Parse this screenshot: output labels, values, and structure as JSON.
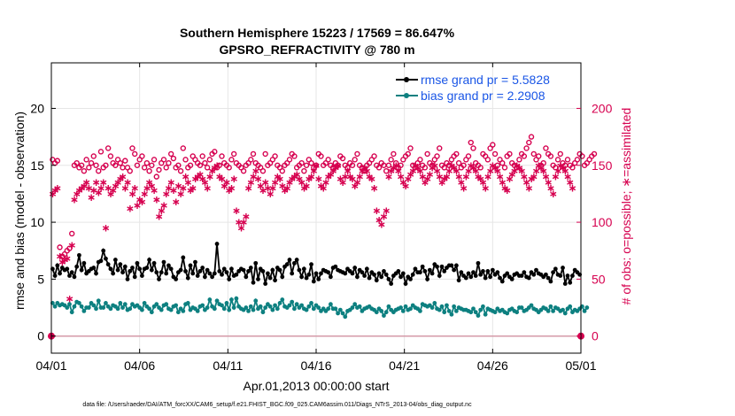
{
  "chart_data": {
    "type": "line",
    "title_line1": "Southern Hemisphere 15223 / 17569 = 86.647%",
    "title_line2": "GPSRO_REFRACTIVITY @ 780 m",
    "xlabel": "Apr.01,2013 00:00:00 start",
    "ylabel_left": "rmse and bias (model - observation)",
    "ylabel_right": "# of obs: o=possible; ∗=assimilated",
    "footer": "data file: /Users/raeder/DAI/ATM_forcXX/CAM6_setup/f.e21.FHIST_BGC.f09_025.CAM6assim.011/Diags_NTrS_2013-04/obs_diag_output.nc",
    "x_ticks": [
      "04/01",
      "04/06",
      "04/11",
      "04/16",
      "04/21",
      "04/26",
      "05/01"
    ],
    "x_tick_days": [
      0,
      5,
      10,
      15,
      20,
      25,
      30
    ],
    "xlim_days": [
      0,
      30
    ],
    "y_left_ticks": [
      "0",
      "5",
      "10",
      "15",
      "20"
    ],
    "y_left_tick_values": [
      0,
      5,
      10,
      15,
      20
    ],
    "ylim_left": [
      -1.5,
      24
    ],
    "y_right_ticks": [
      "0",
      "50",
      "100",
      "150",
      "200"
    ],
    "y_right_tick_values": [
      0,
      50,
      100,
      150,
      200
    ],
    "ylim_right": [
      -15,
      240
    ],
    "grid": true,
    "legend_position": "top-right",
    "colors": {
      "rmse": "#000000",
      "bias": "#0d8080",
      "obs": "#d6004f",
      "zero_line": "#d49aa8",
      "legend_text": "#1a56e6"
    },
    "series": [
      {
        "name": "rmse grand pr = 5.5828",
        "axis": "left",
        "values": [
          5.9,
          5.3,
          6.2,
          5.5,
          6.0,
          5.8,
          5.9,
          5.3,
          5.6,
          5.2,
          6.1,
          7.1,
          5.8,
          6.4,
          5.5,
          5.7,
          5.9,
          6.0,
          5.5,
          6.5,
          6.6,
          7.5,
          6.8,
          6.3,
          5.9,
          5.5,
          6.7,
          5.8,
          6.3,
          5.6,
          6.1,
          5.0,
          5.7,
          6.0,
          5.2,
          6.4,
          5.9,
          5.3,
          5.9,
          6.0,
          6.7,
          5.8,
          6.4,
          5.6,
          5.0,
          5.6,
          6.5,
          5.5,
          6.2,
          5.9,
          5.2,
          5.0,
          5.6,
          5.8,
          6.9,
          5.7,
          5.1,
          6.2,
          5.5,
          6.5,
          5.3,
          5.7,
          6.0,
          5.2,
          5.8,
          5.5,
          5.2,
          5.5,
          8.1,
          5.7,
          5.4,
          5.9,
          5.6,
          5.0,
          5.9,
          5.3,
          5.4,
          5.7,
          5.9,
          5.8,
          5.2,
          5.7,
          6.0,
          4.7,
          6.4,
          5.0,
          5.9,
          5.7,
          4.6,
          5.5,
          5.1,
          5.8,
          4.9,
          6.0,
          5.8,
          5.2,
          6.1,
          6.3,
          6.7,
          5.5,
          6.4,
          6.7,
          5.8,
          5.2,
          5.9,
          5.1,
          5.4,
          6.3,
          4.8,
          5.5,
          5.0,
          5.5,
          5.8,
          5.7,
          5.6,
          5.2,
          6.0,
          6.1,
          5.8,
          5.7,
          5.6,
          5.5,
          5.9,
          5.7,
          5.5,
          6.0,
          5.2,
          5.8,
          5.6,
          5.3,
          5.9,
          5.1,
          5.6,
          5.4,
          4.9,
          5.5,
          5.2,
          5.7,
          5.4,
          5.0,
          4.6,
          5.3,
          5.5,
          5.7,
          5.2,
          5.5,
          4.6,
          5.2,
          5.0,
          5.4,
          5.9,
          5.6,
          5.6,
          6.1,
          5.7,
          5.0,
          5.8,
          5.5,
          6.3,
          6.1,
          5.3,
          6.1,
          5.7,
          6.0,
          6.2,
          6.2,
          5.8,
          6.2,
          4.9,
          5.6,
          5.3,
          5.1,
          5.5,
          5.2,
          5.6,
          5.3,
          6.4,
          5.4,
          5.7,
          5.1,
          5.7,
          5.2,
          5.8,
          5.4,
          5.6,
          5.1,
          4.8,
          5.3,
          5.5,
          5.2,
          5.0,
          5.4,
          5.5,
          5.3,
          5.3,
          5.6,
          5.2,
          5.1,
          5.6,
          5.4,
          5.8,
          5.5,
          5.4,
          5.2,
          5.4,
          5.1,
          4.8,
          5.6,
          5.9,
          5.4,
          5.3,
          6.0,
          4.6,
          5.3,
          4.7,
          5.3,
          5.8,
          5.6,
          5.4
        ]
      },
      {
        "name": "bias grand pr = 2.2908",
        "axis": "left",
        "values": [
          2.9,
          2.6,
          2.9,
          2.7,
          2.8,
          2.7,
          2.5,
          2.8,
          2.1,
          2.6,
          3.0,
          2.9,
          2.6,
          2.2,
          2.5,
          2.5,
          2.9,
          2.7,
          2.4,
          3.1,
          2.5,
          2.5,
          2.9,
          2.6,
          2.4,
          2.7,
          2.6,
          2.4,
          2.9,
          2.5,
          2.8,
          2.3,
          2.4,
          2.8,
          2.6,
          2.7,
          2.5,
          2.3,
          2.9,
          2.6,
          2.4,
          2.1,
          2.6,
          2.8,
          2.5,
          2.3,
          2.7,
          2.8,
          2.4,
          2.3,
          2.6,
          2.7,
          2.1,
          2.4,
          2.2,
          2.8,
          2.9,
          2.3,
          2.5,
          2.4,
          2.2,
          2.6,
          2.7,
          2.3,
          2.5,
          3.2,
          2.6,
          2.4,
          3.1,
          2.8,
          2.7,
          2.4,
          2.9,
          2.3,
          3.2,
          2.5,
          3.3,
          2.6,
          2.4,
          2.3,
          2.5,
          2.2,
          2.6,
          2.3,
          3.1,
          2.4,
          2.6,
          2.1,
          2.5,
          2.8,
          2.6,
          2.3,
          2.7,
          2.4,
          2.9,
          3.2,
          2.6,
          2.5,
          2.7,
          3.0,
          2.4,
          2.8,
          2.5,
          2.7,
          2.4,
          2.3,
          2.6,
          2.9,
          2.4,
          2.7,
          2.5,
          2.2,
          2.4,
          2.2,
          2.4,
          2.8,
          2.4,
          2.4,
          2.0,
          2.3,
          2.0,
          1.7,
          2.2,
          2.3,
          2.5,
          2.8,
          2.5,
          2.6,
          2.2,
          2.4,
          2.5,
          2.6,
          2.4,
          2.3,
          2.1,
          2.4,
          2.2,
          1.8,
          2.1,
          2.6,
          2.3,
          2.1,
          2.3,
          2.4,
          2.5,
          2.2,
          2.6,
          2.3,
          2.4,
          2.7,
          2.5,
          2.4,
          2.2,
          2.8,
          2.7,
          2.6,
          2.7,
          2.5,
          2.9,
          2.4,
          2.3,
          2.6,
          2.1,
          2.7,
          2.2,
          1.9,
          2.6,
          2.2,
          2.5,
          2.4,
          2.3,
          2.3,
          2.2,
          2.1,
          2.4,
          2.1,
          1.8,
          2.3,
          2.6,
          1.9,
          2.4,
          2.3,
          2.2,
          2.1,
          2.4,
          2.2,
          2.3,
          2.1,
          2.0,
          2.3,
          2.4,
          2.2,
          2.1,
          2.5,
          2.5,
          2.2,
          2.3,
          2.5,
          2.7,
          2.4,
          2.3,
          2.1,
          2.3,
          2.5,
          2.4,
          2.2,
          2.6,
          2.2,
          2.5,
          2.4,
          2.2,
          2.3,
          2.0,
          2.4,
          2.6,
          2.1,
          2.3,
          2.2,
          2.4,
          2.6,
          2.2,
          2.5
        ]
      },
      {
        "name": "possible",
        "axis": "right",
        "values": [
          155,
          152,
          154,
          78,
          70,
          72,
          75,
          77,
          90,
          150,
          152,
          148,
          150,
          145,
          155,
          148,
          152,
          158,
          150,
          145,
          162,
          148,
          150,
          165,
          158,
          152,
          150,
          155,
          152,
          148,
          154,
          148,
          145,
          165,
          160,
          150,
          155,
          158,
          148,
          152,
          145,
          150,
          155,
          140,
          146,
          152,
          155,
          148,
          152,
          160,
          156,
          148,
          150,
          145,
          165,
          155,
          148,
          150,
          158,
          155,
          152,
          150,
          158,
          152,
          148,
          155,
          160,
          162,
          148,
          150,
          158,
          152,
          150,
          148,
          155,
          160,
          152,
          150,
          148,
          145,
          150,
          152,
          155,
          160,
          152,
          150,
          148,
          145,
          160,
          150,
          152,
          155,
          158,
          150,
          148,
          145,
          150,
          152,
          155,
          160,
          158,
          148,
          150,
          152,
          145,
          150,
          155,
          152,
          148,
          150,
          160,
          158,
          150,
          152,
          155,
          150,
          148,
          152,
          150,
          158,
          156,
          150,
          148,
          152,
          150,
          155,
          160,
          150,
          148,
          145,
          150,
          152,
          155,
          158,
          150,
          148,
          152,
          150,
          145,
          150,
          155,
          160,
          152,
          148,
          150,
          155,
          158,
          160,
          165,
          150,
          148,
          152,
          155,
          150,
          148,
          160,
          152,
          150,
          155,
          158,
          165,
          150,
          148,
          152,
          150,
          155,
          158,
          160,
          152,
          148,
          150,
          155,
          158,
          170,
          165,
          152,
          150,
          148,
          160,
          158,
          155,
          165,
          168,
          160,
          150,
          155,
          152,
          148,
          158,
          160,
          152,
          150,
          148,
          155,
          160,
          158,
          165,
          170,
          175,
          160,
          155,
          158,
          150,
          152,
          165,
          160,
          158,
          150,
          148,
          155,
          160,
          152,
          150,
          155,
          150,
          148,
          152,
          155,
          160,
          158,
          150,
          152,
          155,
          158,
          160
        ]
      },
      {
        "name": "assimilated",
        "axis": "right",
        "values": [
          125,
          128,
          130,
          70,
          65,
          67,
          68,
          33,
          80,
          120,
          125,
          128,
          130,
          132,
          135,
          130,
          122,
          128,
          135,
          126,
          130,
          135,
          95,
          130,
          125,
          128,
          132,
          135,
          138,
          140,
          130,
          135,
          112,
          125,
          130,
          115,
          120,
          118,
          125,
          130,
          135,
          132,
          128,
          120,
          105,
          110,
          115,
          125,
          130,
          135,
          128,
          118,
          132,
          125,
          130,
          140,
          135,
          128,
          130,
          138,
          140,
          142,
          138,
          135,
          130,
          140,
          145,
          148,
          150,
          140,
          138,
          132,
          135,
          128,
          130,
          138,
          110,
          100,
          95,
          100,
          105,
          130,
          135,
          140,
          145,
          138,
          132,
          128,
          135,
          130,
          125,
          130,
          135,
          140,
          138,
          132,
          128,
          130,
          135,
          138,
          140,
          142,
          138,
          135,
          130,
          132,
          138,
          140,
          145,
          150,
          138,
          132,
          130,
          135,
          140,
          142,
          145,
          148,
          150,
          138,
          135,
          140,
          145,
          140,
          138,
          132,
          135,
          140,
          145,
          148,
          145,
          140,
          138,
          130,
          110,
          102,
          98,
          105,
          110,
          140,
          145,
          148,
          150,
          145,
          140,
          135,
          132,
          138,
          142,
          145,
          150,
          148,
          145,
          140,
          135,
          138,
          142,
          148,
          150,
          145,
          140,
          135,
          138,
          140,
          145,
          150,
          148,
          145,
          140,
          135,
          130,
          140,
          145,
          150,
          148,
          145,
          140,
          138,
          135,
          130,
          140,
          145,
          150,
          148,
          145,
          140,
          135,
          130,
          128,
          138,
          142,
          145,
          150,
          148,
          145,
          140,
          135,
          130,
          138,
          140,
          145,
          150,
          148,
          145,
          140,
          135,
          130,
          125,
          140,
          145,
          150,
          148,
          145,
          140,
          135,
          130
        ]
      }
    ]
  }
}
